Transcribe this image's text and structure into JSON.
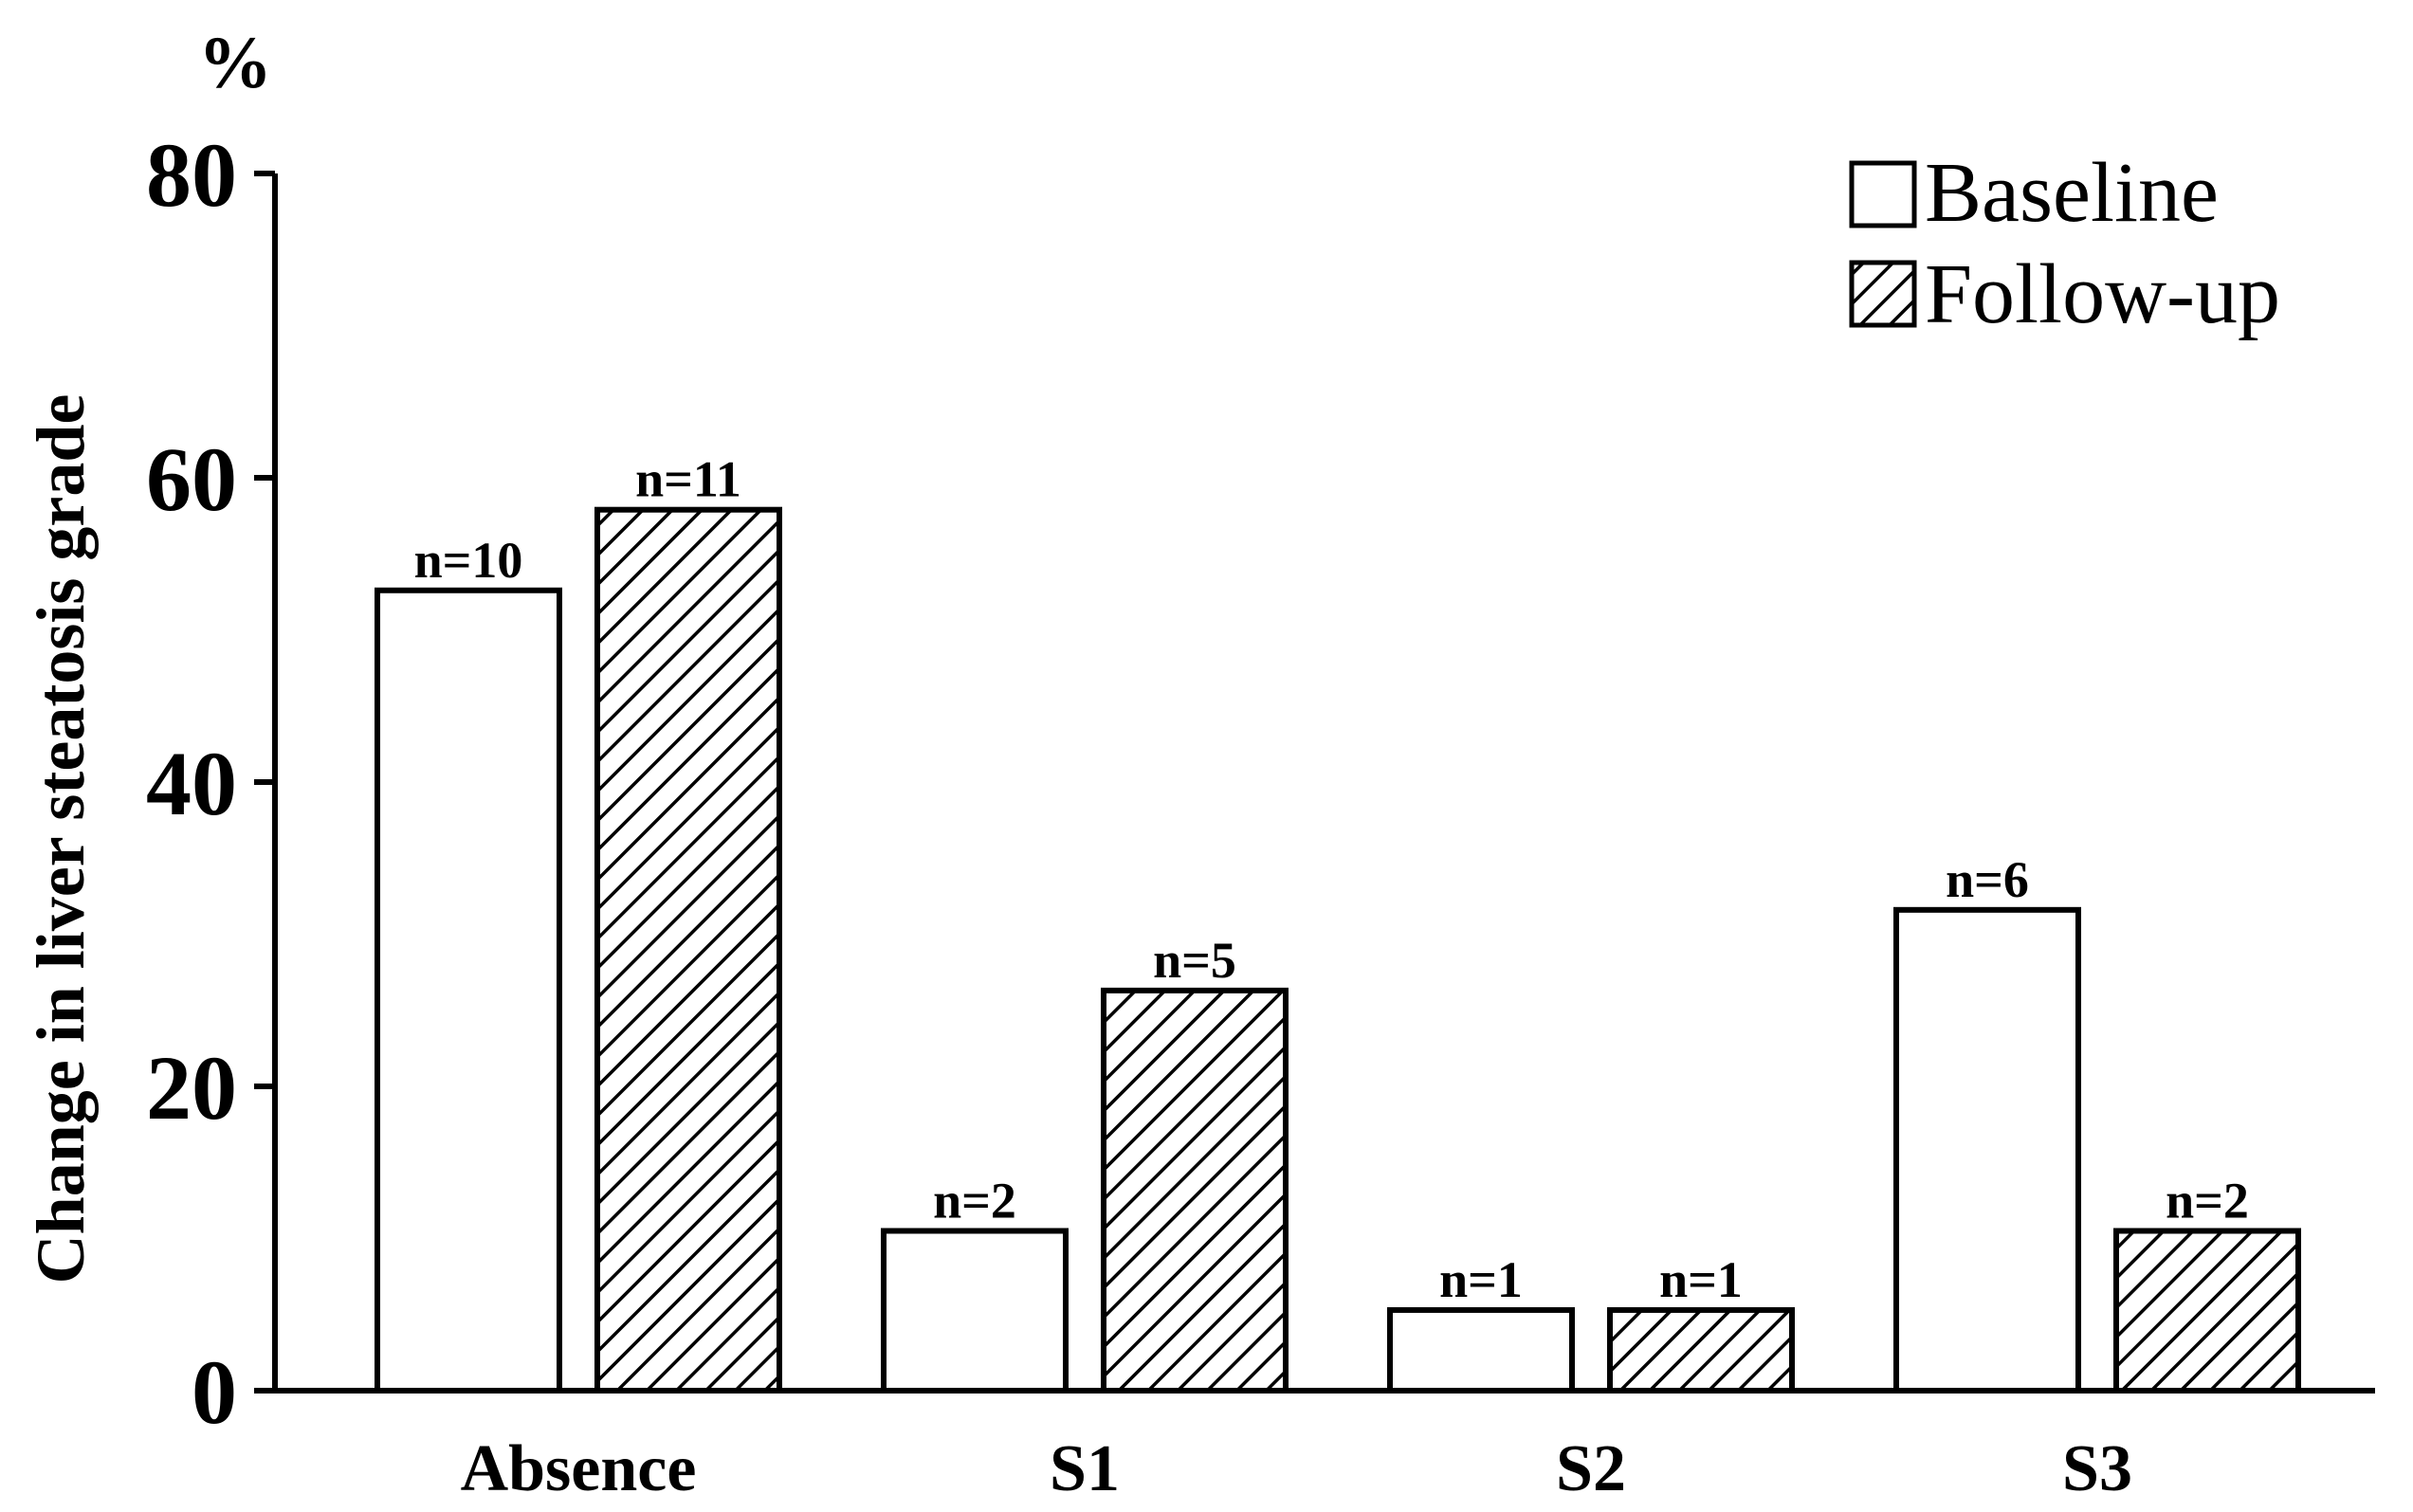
{
  "chart_data": {
    "type": "bar",
    "unit_label": "%",
    "ylabel": "Change in liver steatosis grade",
    "xlabel": "",
    "categories": [
      "Absence",
      "S1",
      "S2",
      "S3"
    ],
    "ylim": [
      0,
      80
    ],
    "yticks": [
      0,
      20,
      40,
      60,
      80
    ],
    "grid": false,
    "legend_position": "top-right",
    "series": [
      {
        "name": "Baseline",
        "pattern": "none",
        "fill": "#ffffff",
        "values": [
          52.6,
          10.5,
          5.3,
          31.6
        ],
        "labels": [
          "n=10",
          "n=2",
          "n=1",
          "n=6"
        ]
      },
      {
        "name": "Follow-up",
        "pattern": "diagonal-hatch",
        "fill": "#000000",
        "values": [
          57.9,
          26.3,
          5.3,
          10.5
        ],
        "labels": [
          "n=11",
          "n=5",
          "n=1",
          "n=2"
        ]
      }
    ]
  }
}
